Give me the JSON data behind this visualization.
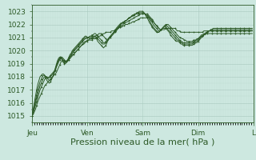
{
  "background_color": "#cde8e0",
  "plot_bg_color": "#cde8e0",
  "grid_color_major": "#a8c8be",
  "grid_color_minor": "#b8d8ce",
  "line_color": "#2d5a27",
  "ylim": [
    1014.5,
    1023.5
  ],
  "yticks": [
    1015,
    1016,
    1017,
    1018,
    1019,
    1020,
    1021,
    1022,
    1023
  ],
  "xlabel": "Pression niveau de la mer( hPa )",
  "xlabel_fontsize": 8,
  "tick_fontsize": 6.5,
  "day_labels": [
    "Jeu",
    "Ven",
    "Sam",
    "Dim",
    "L"
  ],
  "day_positions": [
    0,
    48,
    96,
    144,
    192
  ],
  "total_points": 192,
  "lines": [
    [
      1015.0,
      1015.1,
      1015.3,
      1015.5,
      1015.8,
      1016.1,
      1016.3,
      1016.5,
      1016.7,
      1016.9,
      1017.1,
      1017.3,
      1017.4,
      1017.5,
      1017.6,
      1017.7,
      1017.8,
      1017.9,
      1018.0,
      1018.1,
      1018.2,
      1018.3,
      1018.5,
      1018.7,
      1018.9,
      1019.1,
      1019.2,
      1019.2,
      1019.2,
      1019.2,
      1019.2,
      1019.3,
      1019.4,
      1019.5,
      1019.6,
      1019.7,
      1019.7,
      1019.8,
      1019.9,
      1020.0,
      1020.1,
      1020.2,
      1020.3,
      1020.4,
      1020.5,
      1020.5,
      1020.6,
      1020.7,
      1020.7,
      1020.8,
      1020.8,
      1020.8,
      1020.8,
      1020.9,
      1020.9,
      1020.9,
      1021.0,
      1021.0,
      1021.1,
      1021.1,
      1021.2,
      1021.2,
      1021.3,
      1021.3,
      1021.4,
      1021.4,
      1021.4,
      1021.4,
      1021.4,
      1021.5,
      1021.5,
      1021.5,
      1021.6,
      1021.6,
      1021.7,
      1021.7,
      1021.8,
      1021.8,
      1021.8,
      1021.9,
      1021.9,
      1022.0,
      1022.0,
      1022.0,
      1022.1,
      1022.1,
      1022.1,
      1022.2,
      1022.2,
      1022.2,
      1022.3,
      1022.3,
      1022.4,
      1022.4,
      1022.5,
      1022.5,
      1022.5,
      1022.5,
      1022.5,
      1022.5,
      1022.5,
      1022.5,
      1022.5,
      1022.4,
      1022.3,
      1022.2,
      1022.1,
      1022.0,
      1021.9,
      1021.8,
      1021.7,
      1021.6,
      1021.6,
      1021.6,
      1021.6,
      1021.6,
      1021.7,
      1021.7,
      1021.7,
      1021.7,
      1021.7,
      1021.7,
      1021.7,
      1021.7,
      1021.7,
      1021.6,
      1021.5,
      1021.5,
      1021.5,
      1021.4,
      1021.4,
      1021.4,
      1021.4,
      1021.4,
      1021.4,
      1021.4,
      1021.4,
      1021.4,
      1021.4,
      1021.4,
      1021.4,
      1021.4,
      1021.4,
      1021.4,
      1021.4,
      1021.4,
      1021.4,
      1021.4,
      1021.4,
      1021.5,
      1021.5,
      1021.5,
      1021.5,
      1021.5,
      1021.5,
      1021.5,
      1021.5,
      1021.5,
      1021.5,
      1021.5,
      1021.5,
      1021.5,
      1021.5,
      1021.5,
      1021.5,
      1021.5,
      1021.5,
      1021.5,
      1021.5,
      1021.5,
      1021.5,
      1021.5,
      1021.5,
      1021.5,
      1021.5,
      1021.5,
      1021.5,
      1021.5,
      1021.5,
      1021.5,
      1021.5,
      1021.5,
      1021.5,
      1021.5,
      1021.5,
      1021.5,
      1021.5,
      1021.5,
      1021.5,
      1021.5,
      1021.5,
      1021.5
    ],
    [
      1015.0,
      1015.2,
      1015.5,
      1015.8,
      1016.1,
      1016.4,
      1016.7,
      1017.0,
      1017.2,
      1017.4,
      1017.6,
      1017.8,
      1017.9,
      1017.9,
      1017.9,
      1018.0,
      1018.1,
      1018.2,
      1018.3,
      1018.4,
      1018.5,
      1018.7,
      1018.9,
      1019.1,
      1019.3,
      1019.5,
      1019.5,
      1019.4,
      1019.3,
      1019.2,
      1019.1,
      1019.2,
      1019.3,
      1019.4,
      1019.5,
      1019.6,
      1019.7,
      1019.8,
      1019.9,
      1020.0,
      1020.1,
      1020.2,
      1020.3,
      1020.4,
      1020.5,
      1020.6,
      1020.7,
      1020.7,
      1020.8,
      1020.8,
      1020.9,
      1020.9,
      1021.0,
      1021.0,
      1021.1,
      1021.1,
      1021.2,
      1021.2,
      1021.3,
      1021.3,
      1021.3,
      1021.2,
      1021.1,
      1021.0,
      1020.9,
      1020.8,
      1020.8,
      1020.9,
      1021.0,
      1021.1,
      1021.2,
      1021.3,
      1021.4,
      1021.5,
      1021.6,
      1021.7,
      1021.8,
      1021.9,
      1021.9,
      1022.0,
      1022.1,
      1022.1,
      1022.2,
      1022.2,
      1022.3,
      1022.3,
      1022.4,
      1022.4,
      1022.5,
      1022.5,
      1022.6,
      1022.6,
      1022.7,
      1022.7,
      1022.8,
      1022.8,
      1022.8,
      1022.8,
      1022.8,
      1022.8,
      1022.8,
      1022.7,
      1022.6,
      1022.5,
      1022.4,
      1022.3,
      1022.1,
      1022.0,
      1021.9,
      1021.8,
      1021.7,
      1021.6,
      1021.6,
      1021.7,
      1021.8,
      1021.9,
      1022.0,
      1022.0,
      1022.0,
      1021.9,
      1021.8,
      1021.7,
      1021.6,
      1021.5,
      1021.4,
      1021.3,
      1021.2,
      1021.1,
      1021.0,
      1021.0,
      1020.9,
      1020.9,
      1020.8,
      1020.8,
      1020.7,
      1020.7,
      1020.7,
      1020.7,
      1020.7,
      1020.7,
      1020.8,
      1020.8,
      1020.8,
      1020.9,
      1020.9,
      1021.0,
      1021.0,
      1021.1,
      1021.1,
      1021.2,
      1021.2,
      1021.3,
      1021.3,
      1021.3,
      1021.3,
      1021.3,
      1021.3,
      1021.3,
      1021.3,
      1021.3,
      1021.3,
      1021.3,
      1021.3,
      1021.3,
      1021.3,
      1021.3,
      1021.3,
      1021.3,
      1021.3,
      1021.3,
      1021.3,
      1021.3,
      1021.3,
      1021.3,
      1021.3,
      1021.3,
      1021.3,
      1021.3,
      1021.3,
      1021.3,
      1021.3,
      1021.3,
      1021.3,
      1021.3,
      1021.3,
      1021.3,
      1021.3,
      1021.3,
      1021.3,
      1021.3,
      1021.3,
      1021.3
    ],
    [
      1015.0,
      1015.3,
      1015.6,
      1016.0,
      1016.4,
      1016.7,
      1017.0,
      1017.3,
      1017.5,
      1017.7,
      1017.9,
      1018.0,
      1018.0,
      1018.0,
      1017.9,
      1017.9,
      1018.0,
      1018.1,
      1018.2,
      1018.3,
      1018.5,
      1018.7,
      1019.0,
      1019.2,
      1019.4,
      1019.5,
      1019.4,
      1019.3,
      1019.2,
      1019.1,
      1019.1,
      1019.2,
      1019.3,
      1019.5,
      1019.6,
      1019.8,
      1019.9,
      1020.0,
      1020.1,
      1020.2,
      1020.3,
      1020.4,
      1020.5,
      1020.6,
      1020.7,
      1020.8,
      1020.9,
      1020.9,
      1021.0,
      1021.0,
      1021.1,
      1021.1,
      1021.2,
      1021.2,
      1021.3,
      1021.3,
      1021.2,
      1021.1,
      1021.0,
      1020.9,
      1020.8,
      1020.7,
      1020.6,
      1020.6,
      1020.7,
      1020.8,
      1020.9,
      1021.0,
      1021.1,
      1021.2,
      1021.3,
      1021.4,
      1021.5,
      1021.6,
      1021.7,
      1021.8,
      1021.9,
      1022.0,
      1022.1,
      1022.1,
      1022.2,
      1022.3,
      1022.3,
      1022.4,
      1022.5,
      1022.5,
      1022.6,
      1022.6,
      1022.7,
      1022.7,
      1022.8,
      1022.8,
      1022.8,
      1022.8,
      1022.8,
      1022.8,
      1022.8,
      1022.8,
      1022.8,
      1022.7,
      1022.7,
      1022.6,
      1022.5,
      1022.3,
      1022.2,
      1022.0,
      1021.9,
      1021.8,
      1021.7,
      1021.6,
      1021.5,
      1021.5,
      1021.6,
      1021.7,
      1021.8,
      1021.9,
      1021.9,
      1021.9,
      1021.8,
      1021.7,
      1021.6,
      1021.5,
      1021.4,
      1021.3,
      1021.2,
      1021.1,
      1021.0,
      1020.9,
      1020.8,
      1020.7,
      1020.7,
      1020.6,
      1020.6,
      1020.6,
      1020.6,
      1020.6,
      1020.6,
      1020.6,
      1020.6,
      1020.6,
      1020.7,
      1020.7,
      1020.8,
      1020.8,
      1020.9,
      1021.0,
      1021.1,
      1021.2,
      1021.2,
      1021.3,
      1021.3,
      1021.4,
      1021.4,
      1021.5,
      1021.5,
      1021.5,
      1021.5,
      1021.5,
      1021.5,
      1021.5,
      1021.5,
      1021.5,
      1021.5,
      1021.5,
      1021.5,
      1021.5,
      1021.5,
      1021.5,
      1021.5,
      1021.5,
      1021.5,
      1021.5,
      1021.5,
      1021.5,
      1021.5,
      1021.5,
      1021.5,
      1021.5,
      1021.5,
      1021.5,
      1021.5,
      1021.5,
      1021.5,
      1021.5,
      1021.5,
      1021.5,
      1021.5,
      1021.5,
      1021.5,
      1021.5,
      1021.5,
      1021.5
    ],
    [
      1015.0,
      1015.4,
      1015.8,
      1016.2,
      1016.6,
      1017.0,
      1017.3,
      1017.6,
      1017.8,
      1018.0,
      1018.1,
      1018.1,
      1018.0,
      1017.9,
      1017.8,
      1017.7,
      1017.8,
      1017.9,
      1018.0,
      1018.2,
      1018.5,
      1018.8,
      1019.1,
      1019.3,
      1019.4,
      1019.5,
      1019.3,
      1019.2,
      1019.1,
      1019.1,
      1019.2,
      1019.3,
      1019.4,
      1019.6,
      1019.7,
      1019.9,
      1020.0,
      1020.1,
      1020.2,
      1020.3,
      1020.4,
      1020.5,
      1020.6,
      1020.7,
      1020.8,
      1020.9,
      1021.0,
      1021.0,
      1021.0,
      1021.0,
      1021.0,
      1021.0,
      1021.1,
      1021.1,
      1021.1,
      1021.1,
      1021.0,
      1020.9,
      1020.8,
      1020.7,
      1020.6,
      1020.5,
      1020.5,
      1020.5,
      1020.6,
      1020.7,
      1020.8,
      1021.0,
      1021.1,
      1021.2,
      1021.3,
      1021.4,
      1021.5,
      1021.6,
      1021.7,
      1021.8,
      1021.9,
      1022.0,
      1022.1,
      1022.1,
      1022.2,
      1022.3,
      1022.3,
      1022.4,
      1022.5,
      1022.5,
      1022.6,
      1022.7,
      1022.7,
      1022.8,
      1022.8,
      1022.9,
      1022.9,
      1022.9,
      1022.9,
      1022.9,
      1022.9,
      1022.9,
      1022.8,
      1022.7,
      1022.6,
      1022.5,
      1022.3,
      1022.1,
      1021.9,
      1021.8,
      1021.7,
      1021.6,
      1021.5,
      1021.4,
      1021.4,
      1021.5,
      1021.6,
      1021.7,
      1021.8,
      1021.8,
      1021.8,
      1021.7,
      1021.6,
      1021.5,
      1021.4,
      1021.3,
      1021.2,
      1021.1,
      1021.0,
      1020.9,
      1020.8,
      1020.8,
      1020.7,
      1020.6,
      1020.6,
      1020.5,
      1020.5,
      1020.5,
      1020.5,
      1020.5,
      1020.5,
      1020.5,
      1020.5,
      1020.5,
      1020.6,
      1020.6,
      1020.7,
      1020.7,
      1020.8,
      1020.9,
      1021.0,
      1021.1,
      1021.1,
      1021.2,
      1021.3,
      1021.3,
      1021.4,
      1021.5,
      1021.5,
      1021.6,
      1021.6,
      1021.6,
      1021.6,
      1021.6,
      1021.6,
      1021.6,
      1021.6,
      1021.6,
      1021.6,
      1021.6,
      1021.6,
      1021.6,
      1021.6,
      1021.6,
      1021.6,
      1021.6,
      1021.6,
      1021.6,
      1021.6,
      1021.6,
      1021.6,
      1021.6,
      1021.6,
      1021.6,
      1021.6,
      1021.6,
      1021.6,
      1021.6,
      1021.6,
      1021.6,
      1021.6,
      1021.6,
      1021.6,
      1021.6,
      1021.6,
      1021.6
    ],
    [
      1015.0,
      1015.5,
      1016.0,
      1016.5,
      1017.0,
      1017.4,
      1017.7,
      1018.0,
      1018.1,
      1018.2,
      1018.2,
      1018.1,
      1017.9,
      1017.7,
      1017.6,
      1017.5,
      1017.6,
      1017.8,
      1018.0,
      1018.3,
      1018.6,
      1018.9,
      1019.2,
      1019.4,
      1019.5,
      1019.5,
      1019.3,
      1019.1,
      1019.0,
      1019.0,
      1019.1,
      1019.3,
      1019.5,
      1019.7,
      1019.8,
      1020.0,
      1020.1,
      1020.2,
      1020.3,
      1020.4,
      1020.5,
      1020.6,
      1020.7,
      1020.8,
      1020.9,
      1021.0,
      1021.1,
      1021.1,
      1021.0,
      1021.0,
      1020.9,
      1020.9,
      1020.9,
      1021.0,
      1021.0,
      1021.0,
      1020.9,
      1020.7,
      1020.6,
      1020.5,
      1020.4,
      1020.3,
      1020.2,
      1020.3,
      1020.4,
      1020.6,
      1020.8,
      1021.0,
      1021.1,
      1021.2,
      1021.3,
      1021.4,
      1021.5,
      1021.7,
      1021.8,
      1021.9,
      1022.0,
      1022.1,
      1022.1,
      1022.2,
      1022.2,
      1022.3,
      1022.3,
      1022.4,
      1022.5,
      1022.5,
      1022.6,
      1022.7,
      1022.7,
      1022.8,
      1022.8,
      1022.9,
      1022.9,
      1023.0,
      1023.0,
      1023.0,
      1023.0,
      1022.9,
      1022.8,
      1022.6,
      1022.5,
      1022.3,
      1022.1,
      1022.0,
      1021.8,
      1021.7,
      1021.6,
      1021.5,
      1021.4,
      1021.4,
      1021.4,
      1021.5,
      1021.6,
      1021.7,
      1021.7,
      1021.7,
      1021.7,
      1021.6,
      1021.5,
      1021.4,
      1021.2,
      1021.1,
      1021.0,
      1020.9,
      1020.8,
      1020.7,
      1020.7,
      1020.7,
      1020.6,
      1020.5,
      1020.5,
      1020.4,
      1020.4,
      1020.4,
      1020.4,
      1020.4,
      1020.4,
      1020.4,
      1020.4,
      1020.4,
      1020.5,
      1020.5,
      1020.6,
      1020.6,
      1020.7,
      1020.8,
      1020.9,
      1021.0,
      1021.1,
      1021.2,
      1021.2,
      1021.3,
      1021.4,
      1021.5,
      1021.5,
      1021.6,
      1021.6,
      1021.7,
      1021.7,
      1021.7,
      1021.7,
      1021.7,
      1021.7,
      1021.7,
      1021.7,
      1021.7,
      1021.7,
      1021.7,
      1021.7,
      1021.7,
      1021.7,
      1021.7,
      1021.7,
      1021.7,
      1021.7,
      1021.7,
      1021.7,
      1021.7,
      1021.7,
      1021.7,
      1021.7,
      1021.7,
      1021.7,
      1021.7,
      1021.7,
      1021.7,
      1021.7,
      1021.7,
      1021.7,
      1021.7,
      1021.7,
      1021.7
    ]
  ]
}
